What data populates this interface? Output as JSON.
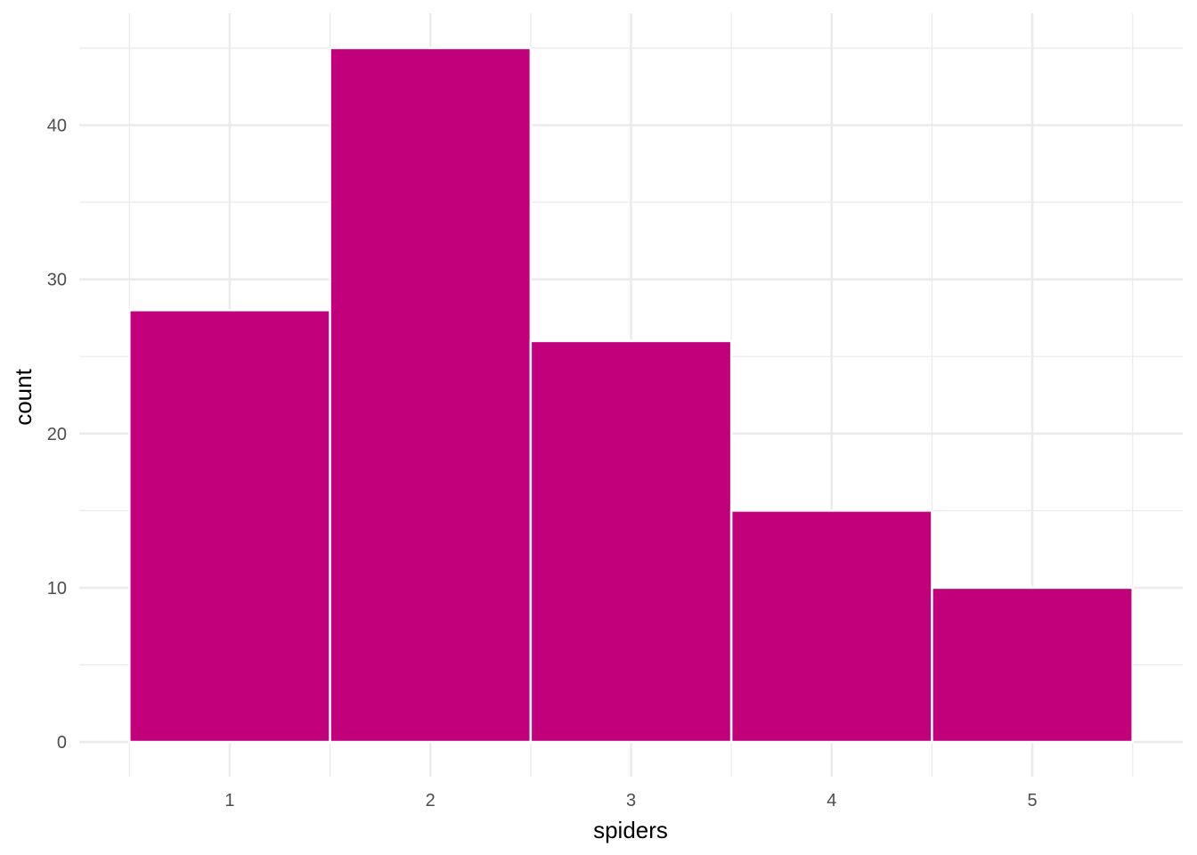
{
  "chart_data": {
    "type": "bar",
    "histogram": true,
    "categories": [
      "1",
      "2",
      "3",
      "4",
      "5"
    ],
    "values": [
      28,
      45,
      26,
      15,
      10
    ],
    "title": "",
    "xlabel": "spiders",
    "ylabel": "count",
    "xlim": [
      0.25,
      5.75
    ],
    "ylim": [
      -2.25,
      47.25
    ],
    "xticks": [
      1,
      2,
      3,
      4,
      5
    ],
    "yticks": [
      0,
      10,
      20,
      30,
      40
    ],
    "grid": true,
    "bar_color": "#C2007B",
    "bar_outline_color": "#ffffff",
    "background": "#ffffff"
  }
}
